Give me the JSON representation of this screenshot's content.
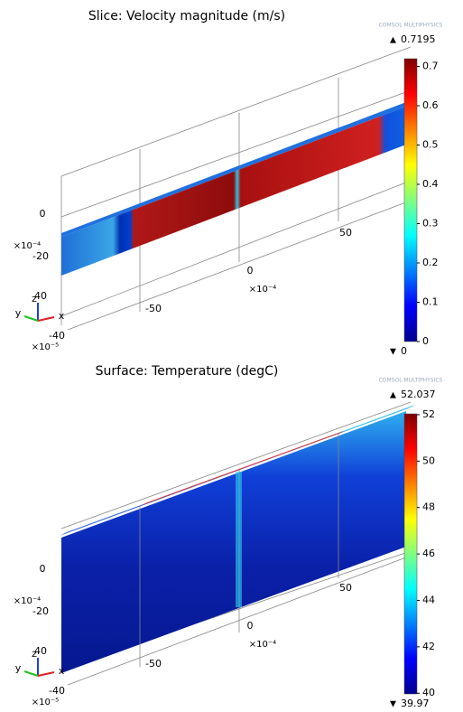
{
  "chart_data": [
    {
      "type": "surface",
      "title": "Slice: Velocity magnitude (m/s)",
      "watermark": "COMSOL MULTIPHYSICS",
      "clim": [
        0,
        0.7195
      ],
      "cticks": [
        0,
        0.1,
        0.2,
        0.3,
        0.4,
        0.5,
        0.6,
        0.7
      ],
      "colormap": [
        "#00008f",
        "#0000ff",
        "#0080ff",
        "#00ffff",
        "#80ff80",
        "#ffff00",
        "#ff8000",
        "#ff0000",
        "#800000"
      ],
      "axis_labels": [
        "0",
        "-20",
        "40",
        "-50",
        "0",
        "50",
        "-40"
      ],
      "exponent_labels": [
        "×10⁻⁴",
        "×10⁻⁴",
        "×10⁻⁵"
      ],
      "triad": [
        "z",
        "y",
        "x"
      ]
    },
    {
      "type": "surface",
      "title": "Surface: Temperature (degC)",
      "watermark": "COMSOL MULTIPHYSICS",
      "clim": [
        39.97,
        52.037
      ],
      "cticks": [
        40,
        42,
        44,
        46,
        48,
        50,
        52
      ],
      "colormap": [
        "#00008f",
        "#0000ff",
        "#0080ff",
        "#00ffff",
        "#80ff80",
        "#ffff00",
        "#ff8000",
        "#ff0000",
        "#800000"
      ],
      "axis_labels": [
        "0",
        "-20",
        "40",
        "-50",
        "0",
        "50",
        "-40"
      ],
      "exponent_labels": [
        "×10⁻⁴",
        "×10⁻⁴",
        "×10⁻⁵"
      ],
      "triad": [
        "z",
        "y",
        "x"
      ]
    }
  ]
}
